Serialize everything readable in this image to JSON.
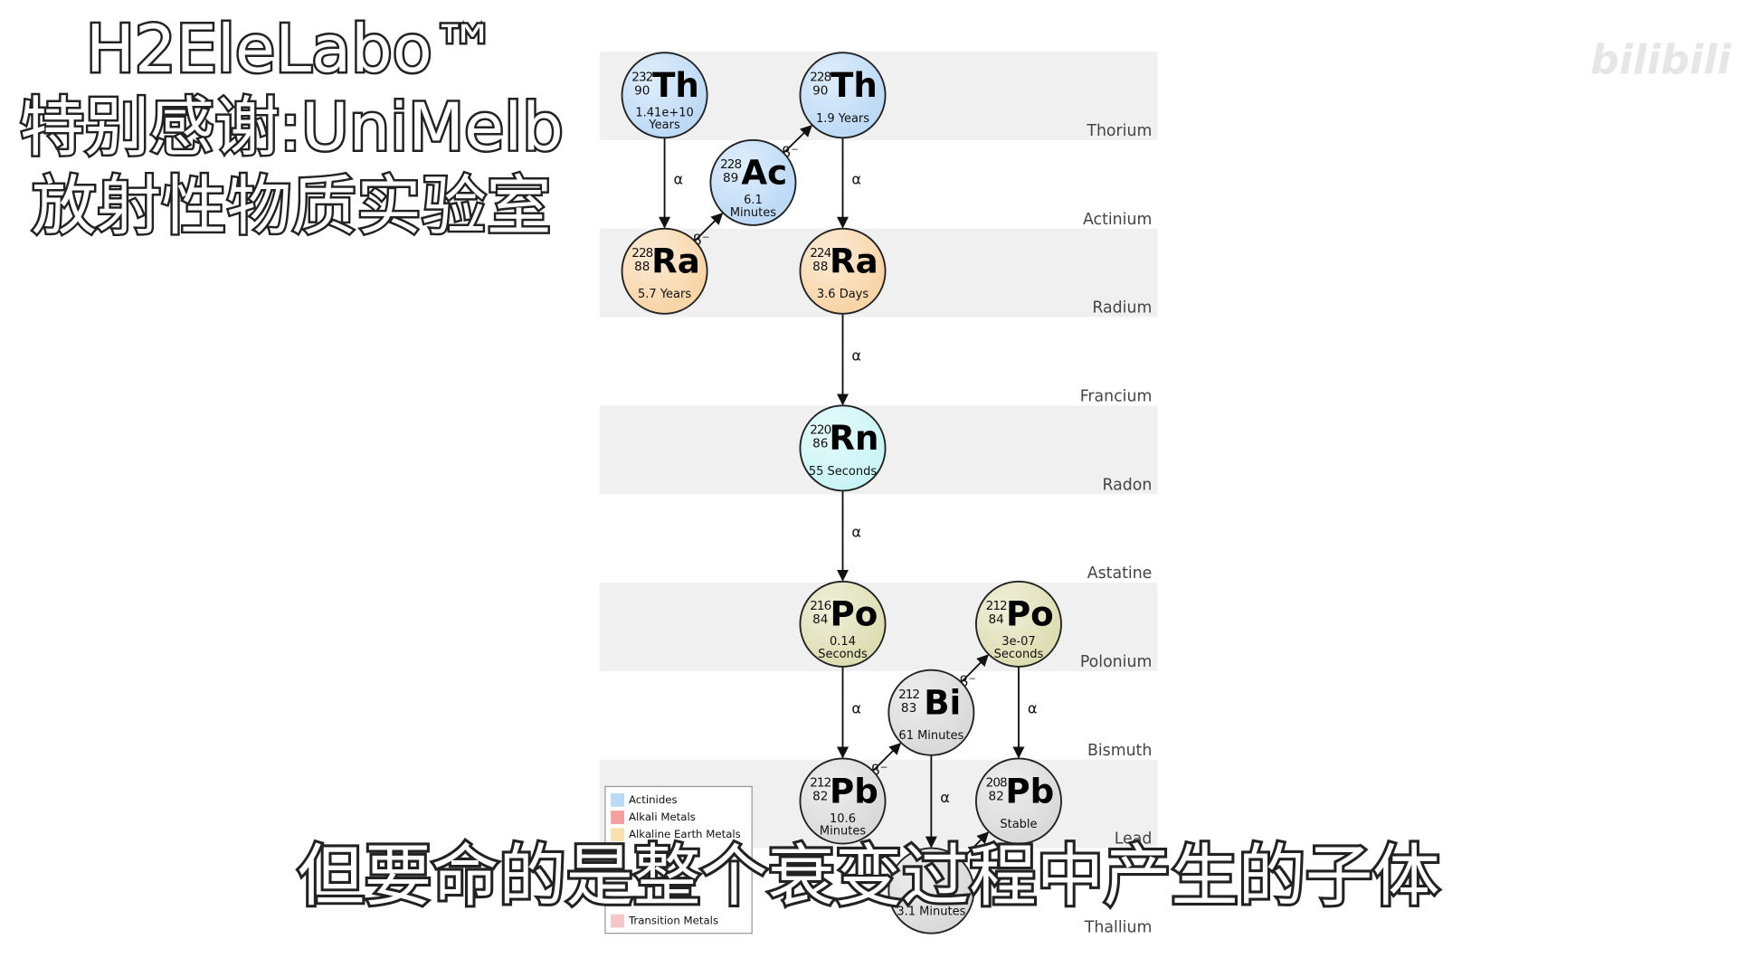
{
  "header": {
    "lines": [
      "H2EleLabo™",
      "特别感谢:UniMelb",
      "放射性物质实验室"
    ]
  },
  "watermark": "bilibili",
  "caption": "但要命的是整个衰变过程中产生的子体",
  "rows": [
    "Thorium",
    "Actinium",
    "Radium",
    "Francium",
    "Radon",
    "Astatine",
    "Polonium",
    "Bismuth",
    "Lead",
    "Thallium"
  ],
  "nodes": [
    {
      "mass": "232",
      "z": "90",
      "symbol": "Th",
      "half_life": [
        "1.41e+10",
        "Years"
      ],
      "color": "#bcd9f6"
    },
    {
      "mass": "228",
      "z": "90",
      "symbol": "Th",
      "half_life": [
        "1.9 Years"
      ],
      "color": "#bcd9f6"
    },
    {
      "mass": "228",
      "z": "89",
      "symbol": "Ac",
      "half_life": [
        "6.1",
        "Minutes"
      ],
      "color": "#bcd9f6"
    },
    {
      "mass": "228",
      "z": "88",
      "symbol": "Ra",
      "half_life": [
        "5.7 Years"
      ],
      "color": "#f8d4a6"
    },
    {
      "mass": "224",
      "z": "88",
      "symbol": "Ra",
      "half_life": [
        "3.6 Days"
      ],
      "color": "#f8d4a6"
    },
    {
      "mass": "220",
      "z": "86",
      "symbol": "Rn",
      "half_life": [
        "55 Seconds"
      ],
      "color": "#c9f4f6"
    },
    {
      "mass": "216",
      "z": "84",
      "symbol": "Po",
      "half_life": [
        "0.14",
        "Seconds"
      ],
      "color": "#ddddb2"
    },
    {
      "mass": "212",
      "z": "84",
      "symbol": "Po",
      "half_life": [
        "3e-07",
        "Seconds"
      ],
      "color": "#ddddb2"
    },
    {
      "mass": "212",
      "z": "83",
      "symbol": "Bi",
      "half_life": [
        "61 Minutes"
      ],
      "color": "#d9d9d9"
    },
    {
      "mass": "212",
      "z": "82",
      "symbol": "Pb",
      "half_life": [
        "10.6",
        "Minutes"
      ],
      "color": "#d9d9d9"
    },
    {
      "mass": "208",
      "z": "82",
      "symbol": "Pb",
      "half_life": [
        "Stable"
      ],
      "color": "#d9d9d9"
    },
    {
      "half_life": [
        "3.1 Minutes"
      ],
      "color": "#d9d9d9"
    }
  ],
  "edges": [
    {
      "from": 0,
      "to": 3,
      "label": "α"
    },
    {
      "from": 3,
      "to": 2,
      "label": "β⁻"
    },
    {
      "from": 2,
      "to": 1,
      "label": "β⁻"
    },
    {
      "from": 1,
      "to": 4,
      "label": "α"
    },
    {
      "from": 4,
      "to": 5,
      "label": "α"
    },
    {
      "from": 5,
      "to": 6,
      "label": "α"
    },
    {
      "from": 6,
      "to": 9,
      "label": "α"
    },
    {
      "from": 9,
      "to": 8,
      "label": "β⁻"
    },
    {
      "from": 8,
      "to": 7,
      "label": "β⁻"
    },
    {
      "from": 7,
      "to": 10,
      "label": "α"
    },
    {
      "from": 8,
      "to": 11,
      "label": "α"
    },
    {
      "from": 11,
      "to": 10
    }
  ],
  "legend": [
    {
      "label": "Actinides",
      "color": "#bcd9f6"
    },
    {
      "label": "Alkali Metals",
      "color": "#f4a0a0"
    },
    {
      "label": "Alkaline Earth Metals",
      "color": "#f8e0b0"
    },
    {
      "label": "Transition Metals",
      "color": "#f4c8c8"
    }
  ]
}
